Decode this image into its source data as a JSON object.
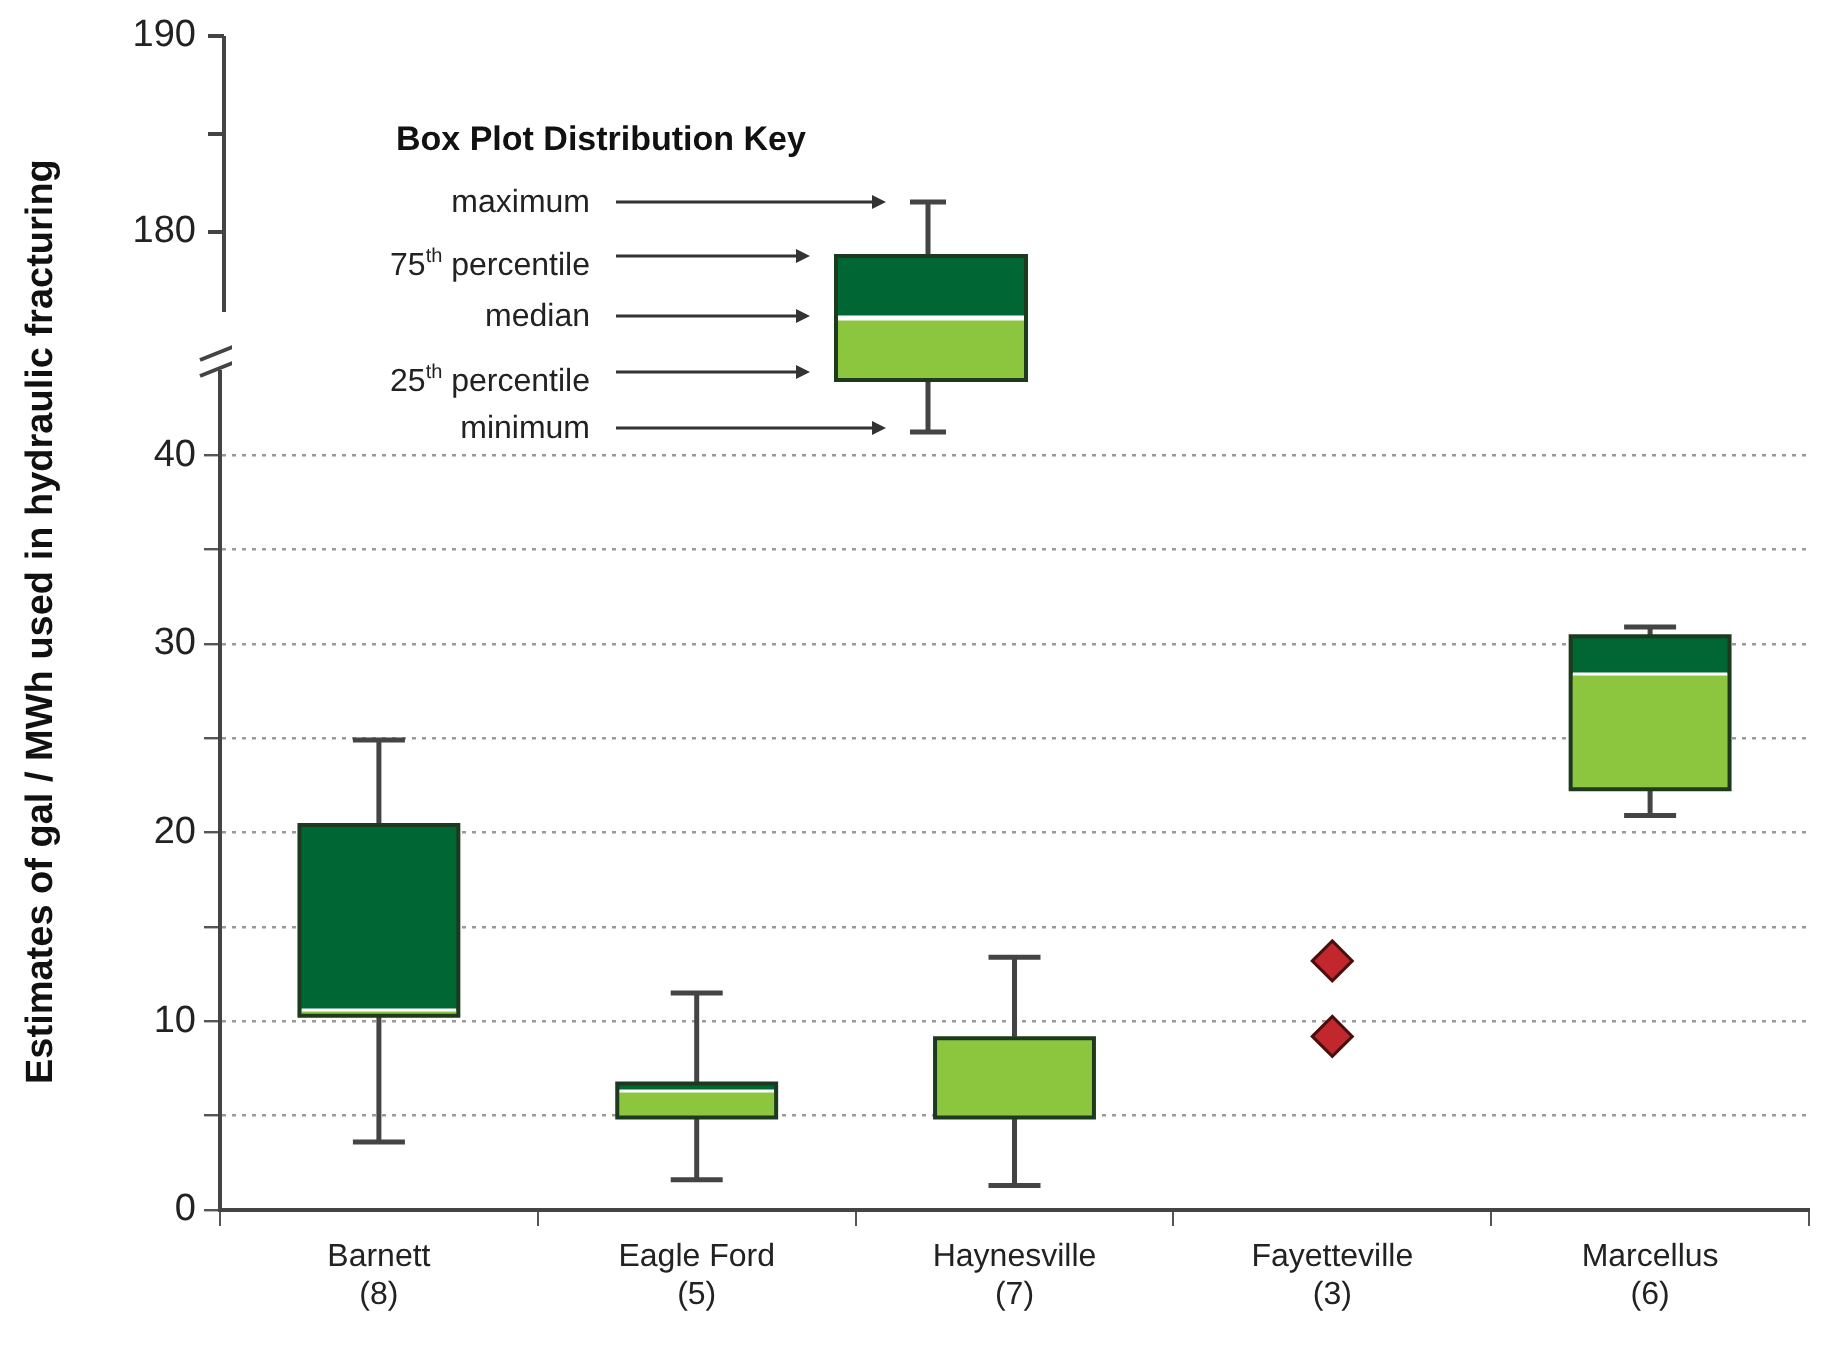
{
  "chart_data": [
    {
      "type": "other",
      "annotations": [
        "190",
        "180",
        "Box Plot Distribution Key",
        "maximum",
        "75$^{th}$ percentile",
        "median",
        "25$^{th}$ percentile",
        "minimum"
      ]
    },
    {
      "type": "box",
      "ylabel": "Estimates of gal / MWh used in hydraulic fracturing",
      "categories": [
        "Barnett\n(8)",
        "Eagle Ford\n(5)",
        "Haynesville\n(7)",
        "Fayetteville\n(3)",
        "Marcellus\n(6)"
      ],
      "series": [
        {
          "type": "box",
          "color": "#006633",
          "colors": [
            "#8cc63f",
            "#8cc63f",
            "#8cc63f",
            "#8cc63f",
            "#8cc63f"
          ],
          "boxes": [
            {
              "low": 3.6,
              "q1": 10.3,
              "median": 10.6,
              "q3": 20.4,
              "high": 24.9
            },
            {
              "low": 1.6,
              "q1": 4.9,
              "median": 6.3,
              "q3": 6.7,
              "high": 11.5
            },
            {
              "low": 1.3,
              "q1": 4.9,
              "median": 9.1,
              "q3": 9.1,
              "high": 13.4
            },
            null,
            {
              "low": 20.9,
              "q1": 22.3,
              "median": 28.4,
              "q3": 30.4,
              "high": 30.9
            }
          ]
        },
        {
          "type": "scatter",
          "color": "#c1272d",
          "x": [
            "Fayetteville\n(3)",
            "Fayetteville\n(3)"
          ],
          "values": [
            13.2,
            9.2
          ]
        }
      ],
      "ylim": [
        0,
        45
      ],
      "yticks": [
        0,
        {
          "value": 5,
          "label": null
        },
        10,
        {
          "value": 15,
          "label": null
        },
        20,
        {
          "value": 25,
          "label": null
        },
        30,
        {
          "value": 35,
          "label": null
        },
        40
      ],
      "grid": "y",
      "marker": "diamond",
      "legend": false
    }
  ]
}
